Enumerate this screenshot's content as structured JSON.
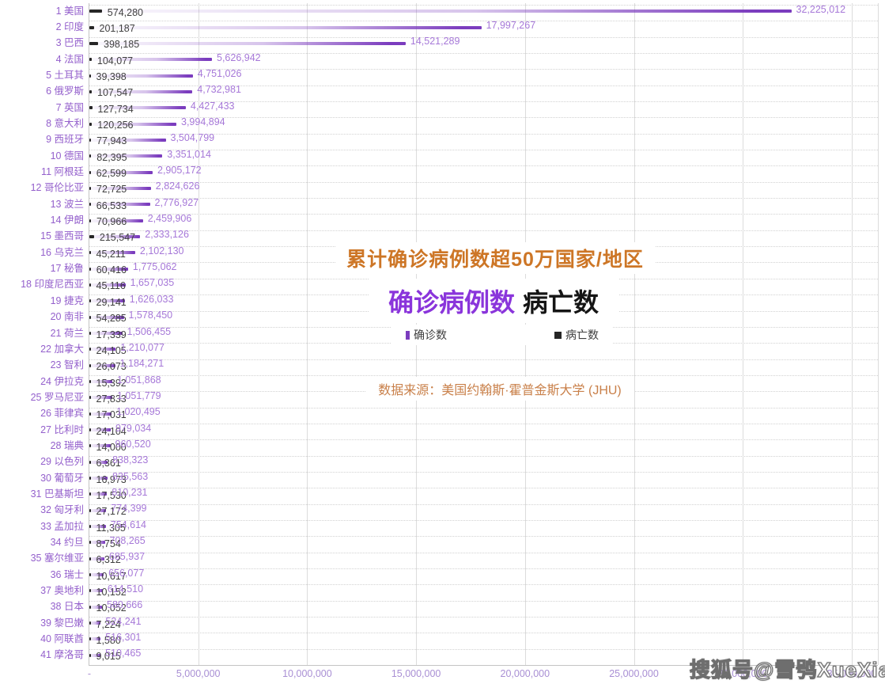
{
  "header": {
    "title": "累计确诊病例数超50万国家/地区",
    "subtitle_confirmed": "确诊病例数",
    "subtitle_deaths": "病亡数",
    "source": "数据来源：美国约翰斯·霍普金斯大学 (JHU)"
  },
  "watermark": "搜狐号@雪鸮XueXiao",
  "colors": {
    "bar_confirmed": "#7b3cbe",
    "bar_deaths": "#262626",
    "label_confirmed": "#a678d8",
    "label_deaths": "#3f3f3f",
    "category_label": "#9460cc",
    "axis_label": "#a98fd4",
    "title": "#cd7626",
    "subtitle_confirmed": "#8a35db",
    "subtitle_deaths": "#151515",
    "source": "#c9804a",
    "legend_text": "#3d3d3d",
    "gridline_v": "#dcdcdc",
    "gridline_h": "#d2d2d2",
    "axis_line": "#c4c4c4"
  },
  "chart_data": {
    "type": "bar",
    "orientation": "horizontal",
    "title": "累计确诊病例数超50万国家/地区",
    "grid": true,
    "legend_position": "center-overlay",
    "legend": [
      {
        "label": "确诊数",
        "color": "#7b3cbe"
      },
      {
        "label": "病亡数",
        "color": "#262626"
      }
    ],
    "x_axis": {
      "min": 0,
      "max": 35000000,
      "tick_interval": 5000000,
      "ticks": [
        "-",
        "5,000,000",
        "10,000,000",
        "15,000,000",
        "20,000,000",
        "25,000,000",
        "30,000,000",
        "35,000,000"
      ]
    },
    "series_names": {
      "confirmed": "确诊数",
      "deaths": "病亡数"
    },
    "rows": [
      {
        "rank": 1,
        "country": "美国",
        "deaths": 574280,
        "confirmed": 32225012
      },
      {
        "rank": 2,
        "country": "印度",
        "deaths": 201187,
        "confirmed": 17997267
      },
      {
        "rank": 3,
        "country": "巴西",
        "deaths": 398185,
        "confirmed": 14521289
      },
      {
        "rank": 4,
        "country": "法国",
        "deaths": 104077,
        "confirmed": 5626942
      },
      {
        "rank": 5,
        "country": "土耳其",
        "deaths": 39398,
        "confirmed": 4751026
      },
      {
        "rank": 6,
        "country": "俄罗斯",
        "deaths": 107547,
        "confirmed": 4732981
      },
      {
        "rank": 7,
        "country": "英国",
        "deaths": 127734,
        "confirmed": 4427433
      },
      {
        "rank": 8,
        "country": "意大利",
        "deaths": 120256,
        "confirmed": 3994894
      },
      {
        "rank": 9,
        "country": "西班牙",
        "deaths": 77943,
        "confirmed": 3504799
      },
      {
        "rank": 10,
        "country": "德国",
        "deaths": 82395,
        "confirmed": 3351014
      },
      {
        "rank": 11,
        "country": "阿根廷",
        "deaths": 62599,
        "confirmed": 2905172
      },
      {
        "rank": 12,
        "country": "哥伦比亚",
        "deaths": 72725,
        "confirmed": 2824626
      },
      {
        "rank": 13,
        "country": "波兰",
        "deaths": 66533,
        "confirmed": 2776927
      },
      {
        "rank": 14,
        "country": "伊朗",
        "deaths": 70966,
        "confirmed": 2459906
      },
      {
        "rank": 15,
        "country": "墨西哥",
        "deaths": 215547,
        "confirmed": 2333126
      },
      {
        "rank": 16,
        "country": "乌克兰",
        "deaths": 45211,
        "confirmed": 2102130
      },
      {
        "rank": 17,
        "country": "秘鲁",
        "deaths": 60416,
        "confirmed": 1775062
      },
      {
        "rank": 18,
        "country": "印度尼西亚",
        "deaths": 45116,
        "confirmed": 1657035
      },
      {
        "rank": 19,
        "country": "捷克",
        "deaths": 29141,
        "confirmed": 1626033
      },
      {
        "rank": 20,
        "country": "南非",
        "deaths": 54285,
        "confirmed": 1578450
      },
      {
        "rank": 21,
        "country": "荷兰",
        "deaths": 17339,
        "confirmed": 1506455
      },
      {
        "rank": 22,
        "country": "加拿大",
        "deaths": 24105,
        "confirmed": 1210077
      },
      {
        "rank": 23,
        "country": "智利",
        "deaths": 26073,
        "confirmed": 1184271
      },
      {
        "rank": 24,
        "country": "伊拉克",
        "deaths": 15392,
        "confirmed": 1051868
      },
      {
        "rank": 25,
        "country": "罗马尼亚",
        "deaths": 27833,
        "confirmed": 1051779
      },
      {
        "rank": 26,
        "country": "菲律宾",
        "deaths": 17031,
        "confirmed": 1020495
      },
      {
        "rank": 27,
        "country": "比利时",
        "deaths": 24104,
        "confirmed": 979034
      },
      {
        "rank": 28,
        "country": "瑞典",
        "deaths": 14000,
        "confirmed": 960520
      },
      {
        "rank": 29,
        "country": "以色列",
        "deaths": 6361,
        "confirmed": 838323
      },
      {
        "rank": 30,
        "country": "葡萄牙",
        "deaths": 16973,
        "confirmed": 835563
      },
      {
        "rank": 31,
        "country": "巴基斯坦",
        "deaths": 17530,
        "confirmed": 810231
      },
      {
        "rank": 32,
        "country": "匈牙利",
        "deaths": 27172,
        "confirmed": 774399
      },
      {
        "rank": 33,
        "country": "孟加拉",
        "deaths": 11305,
        "confirmed": 754614
      },
      {
        "rank": 34,
        "country": "约旦",
        "deaths": 8754,
        "confirmed": 708265
      },
      {
        "rank": 35,
        "country": "塞尔维亚",
        "deaths": 6312,
        "confirmed": 685937
      },
      {
        "rank": 36,
        "country": "瑞士",
        "deaths": 10617,
        "confirmed": 656077
      },
      {
        "rank": 37,
        "country": "奥地利",
        "deaths": 10152,
        "confirmed": 614510
      },
      {
        "rank": 38,
        "country": "日本",
        "deaths": 10052,
        "confirmed": 580666
      },
      {
        "rank": 39,
        "country": "黎巴嫩",
        "deaths": 7224,
        "confirmed": 524241
      },
      {
        "rank": 40,
        "country": "阿联酋",
        "deaths": 1580,
        "confirmed": 516301
      },
      {
        "rank": 41,
        "country": "摩洛哥",
        "deaths": 9015,
        "confirmed": 510465
      }
    ]
  }
}
